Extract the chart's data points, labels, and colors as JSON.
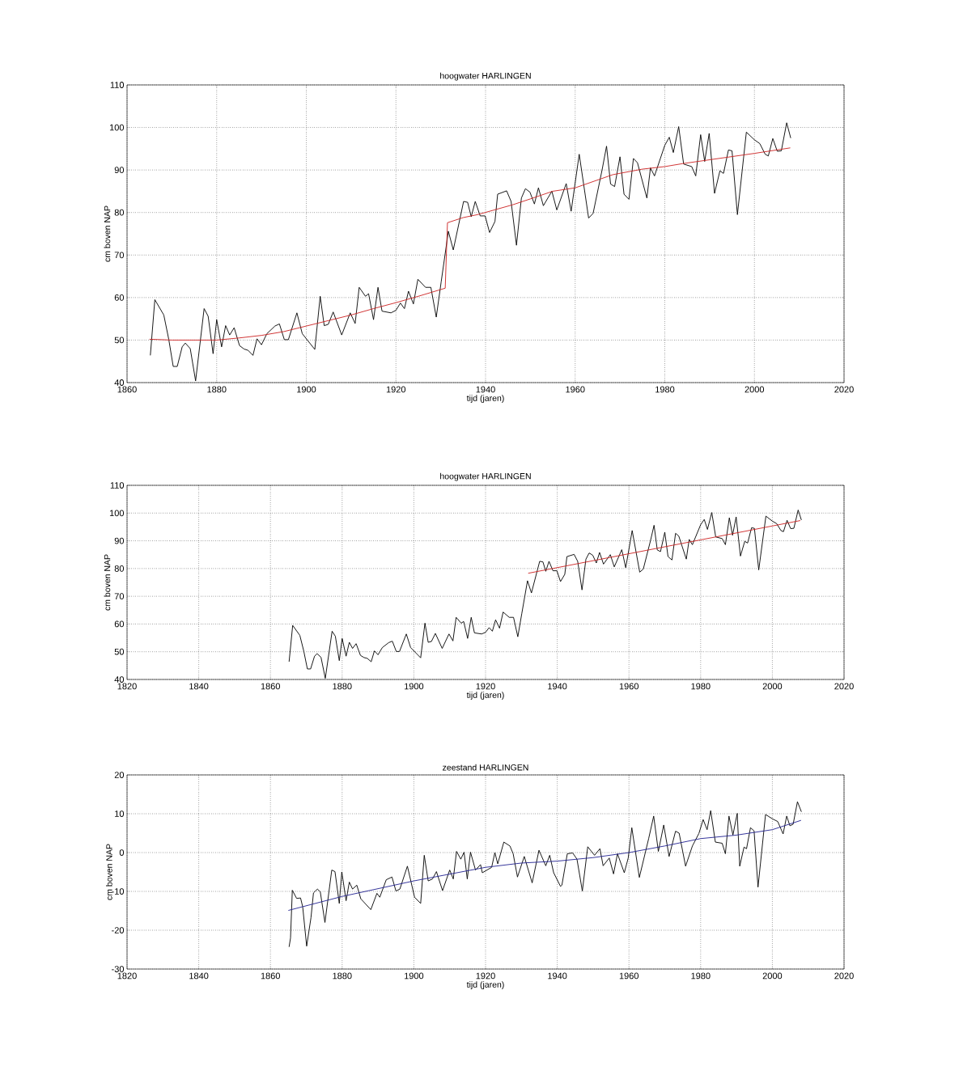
{
  "chart_data": [
    {
      "type": "line",
      "title": "hoogwater HARLINGEN",
      "xlabel": "tijd (jaren)",
      "ylabel": "cm boven NAP",
      "xlim": [
        1860,
        2020
      ],
      "ylim": [
        40,
        110
      ],
      "xticks": [
        1860,
        1880,
        1900,
        1920,
        1940,
        1960,
        1980,
        2000,
        2020
      ],
      "yticks": [
        40,
        50,
        60,
        70,
        80,
        90,
        100,
        110
      ],
      "grid": true,
      "series": [
        {
          "color": "#000000",
          "x": [
            1865.2,
            1866.2,
            1868.2,
            1869.3,
            1870.3,
            1871.2,
            1872.3,
            1873,
            1874.1,
            1875.3,
            1877.2,
            1878.1,
            1879.2,
            1880,
            1881.1,
            1882,
            1882.9,
            1883.9,
            1885.1,
            1886.1,
            1887,
            1888.1,
            1889,
            1890,
            1891.2,
            1893,
            1894,
            1895.1,
            1896,
            1897.9,
            1899.1,
            1901.9,
            1903.1,
            1904,
            1904.9,
            1906,
            1907.9,
            1909.8,
            1910.9,
            1911.8,
            1913.2,
            1913.9,
            1915,
            1916,
            1916.9,
            1918.9,
            1920,
            1921,
            1921.9,
            1922.8,
            1923.9,
            1924.9,
            1926.6,
            1927.8,
            1929,
            1930.1,
            1931.7,
            1932.8,
            1935.1,
            1936,
            1936.8,
            1937.7,
            1938.8,
            1939.9,
            1940.9,
            1942.1,
            1942.7,
            1944.7,
            1945.7,
            1946.9,
            1948,
            1948.9,
            1949.9,
            1950.9,
            1951.8,
            1952.9,
            1954.8,
            1955.9,
            1958,
            1959.1,
            1960.9,
            1963,
            1964,
            1966,
            1967,
            1967.9,
            1968.8,
            1970,
            1970.9,
            1972,
            1973,
            1973.9,
            1976,
            1976.8,
            1977.7,
            1980,
            1981,
            1981.9,
            1983.1,
            1984.2,
            1986,
            1986.9,
            1988,
            1988.9,
            1989.9,
            1991.1,
            1992.3,
            1993.1,
            1994.2,
            1995,
            1996.2,
            1998.2,
            2000,
            2001.2,
            2002.4,
            2003.1,
            2004.1,
            2005.1,
            2006,
            2007.2,
            2008.1
          ],
          "values": [
            46.4,
            59.5,
            55.9,
            50.2,
            43.8,
            43.8,
            48.4,
            49.3,
            48,
            40.4,
            57.4,
            55.6,
            46.8,
            54.8,
            48.4,
            53.4,
            51.2,
            52.9,
            48.7,
            47.9,
            47.6,
            46.4,
            50.3,
            48.9,
            51.5,
            53.3,
            53.8,
            50.1,
            50.1,
            56.4,
            51.5,
            47.8,
            60.3,
            53.4,
            53.7,
            56.6,
            51.2,
            56.4,
            53.9,
            62.4,
            60.3,
            60.9,
            54.8,
            62.4,
            56.8,
            56.4,
            57,
            58.7,
            57.4,
            61.5,
            58.5,
            64.3,
            62.4,
            62.4,
            55.4,
            63.7,
            75.6,
            71.2,
            82.6,
            82.4,
            79,
            82.6,
            79.2,
            79.2,
            75.3,
            77.9,
            84.3,
            85.1,
            82.6,
            72.3,
            83.4,
            85.6,
            84.8,
            82,
            85.8,
            81.6,
            85,
            80.6,
            86.8,
            80.3,
            93.7,
            78.7,
            79.8,
            90,
            95.6,
            86.7,
            86.1,
            93.1,
            84.3,
            83.1,
            92.7,
            91.7,
            83.4,
            90.5,
            88.6,
            95.8,
            97.7,
            94.1,
            100.2,
            91.4,
            90.8,
            88.6,
            98.3,
            92,
            98.6,
            84.5,
            89.8,
            89.2,
            94.7,
            94.5,
            79.5,
            98.9,
            97.1,
            96.2,
            93.7,
            93.3,
            97.4,
            94.4,
            94.5,
            101.1,
            97.5
          ]
        },
        {
          "color": "#cc2020",
          "x": [
            1865,
            1870,
            1880,
            1885,
            1890,
            1895,
            1900,
            1905,
            1910,
            1915,
            1920,
            1925,
            1931,
            1931.5,
            1935,
            1938.2,
            1946,
            1950,
            1955,
            1960,
            1968.4,
            1975,
            1980,
            1984,
            2000,
            2008
          ],
          "values": [
            50.2,
            50,
            50,
            50.5,
            51.1,
            52,
            53.3,
            54.6,
            55.9,
            57.4,
            58.8,
            60.3,
            62.2,
            77.6,
            78.8,
            79.5,
            81.8,
            83.2,
            85,
            85.8,
            88.9,
            90.2,
            90.8,
            91.5,
            93.9,
            95.2
          ]
        }
      ]
    },
    {
      "type": "line",
      "title": "hoogwater HARLINGEN",
      "xlabel": "tijd (jaren)",
      "ylabel": "cm boven NAP",
      "xlim": [
        1820,
        2020
      ],
      "ylim": [
        40,
        110
      ],
      "xticks": [
        1820,
        1840,
        1860,
        1880,
        1900,
        1920,
        1940,
        1960,
        1980,
        2000,
        2020
      ],
      "yticks": [
        40,
        50,
        60,
        70,
        80,
        90,
        100,
        110
      ],
      "grid": true,
      "series": [
        {
          "color": "#000000",
          "x": [
            1865.2,
            1866.2,
            1868.2,
            1869.3,
            1870.3,
            1871.2,
            1872.3,
            1873,
            1874.1,
            1875.3,
            1877.2,
            1878.1,
            1879.2,
            1880,
            1881.1,
            1882,
            1882.9,
            1883.9,
            1885.1,
            1886.1,
            1887,
            1888.1,
            1889,
            1890,
            1891.2,
            1893,
            1894,
            1895.1,
            1896,
            1897.9,
            1899.1,
            1901.9,
            1903.1,
            1904,
            1904.9,
            1906,
            1907.9,
            1909.8,
            1910.9,
            1911.8,
            1913.2,
            1913.9,
            1915,
            1916,
            1916.9,
            1918.9,
            1920,
            1921,
            1921.9,
            1922.8,
            1923.9,
            1924.9,
            1926.6,
            1927.8,
            1929,
            1930.1,
            1931.7,
            1932.8,
            1935.1,
            1936,
            1936.8,
            1937.7,
            1938.8,
            1939.9,
            1940.9,
            1942.1,
            1942.7,
            1944.7,
            1945.7,
            1946.9,
            1948,
            1948.9,
            1949.9,
            1950.9,
            1951.8,
            1952.9,
            1954.8,
            1955.9,
            1958,
            1959.1,
            1960.9,
            1963,
            1964,
            1966,
            1967,
            1967.9,
            1968.8,
            1970,
            1970.9,
            1972,
            1973,
            1973.9,
            1976,
            1976.8,
            1977.7,
            1980,
            1981,
            1981.9,
            1983.1,
            1984.2,
            1986,
            1986.9,
            1988,
            1988.9,
            1989.9,
            1991.1,
            1992.3,
            1993.1,
            1994.2,
            1995,
            1996.2,
            1998.2,
            2000,
            2001.2,
            2002.4,
            2003.1,
            2004.1,
            2005.1,
            2006,
            2007.2,
            2008.1
          ],
          "values": [
            46.4,
            59.5,
            55.9,
            50.2,
            43.8,
            43.8,
            48.4,
            49.3,
            48,
            40.4,
            57.4,
            55.6,
            46.8,
            54.8,
            48.4,
            53.4,
            51.2,
            52.9,
            48.7,
            47.9,
            47.6,
            46.4,
            50.3,
            48.9,
            51.5,
            53.3,
            53.8,
            50.1,
            50.1,
            56.4,
            51.5,
            47.8,
            60.3,
            53.4,
            53.7,
            56.6,
            51.2,
            56.4,
            53.9,
            62.4,
            60.3,
            60.9,
            54.8,
            62.4,
            56.8,
            56.4,
            57,
            58.7,
            57.4,
            61.5,
            58.5,
            64.3,
            62.4,
            62.4,
            55.4,
            63.7,
            75.6,
            71.2,
            82.6,
            82.4,
            79,
            82.6,
            79.2,
            79.2,
            75.3,
            77.9,
            84.3,
            85.1,
            82.6,
            72.3,
            83.4,
            85.6,
            84.8,
            82,
            85.8,
            81.6,
            85,
            80.6,
            86.8,
            80.3,
            93.7,
            78.7,
            79.8,
            90,
            95.6,
            86.7,
            86.1,
            93.1,
            84.3,
            83.1,
            92.7,
            91.7,
            83.4,
            90.5,
            88.6,
            95.8,
            97.7,
            94.1,
            100.2,
            91.4,
            90.8,
            88.6,
            98.3,
            92,
            98.6,
            84.5,
            89.8,
            89.2,
            94.7,
            94.5,
            79.5,
            98.9,
            97.1,
            96.2,
            93.7,
            93.3,
            97.4,
            94.4,
            94.5,
            101.1,
            97.5
          ]
        },
        {
          "color": "#cc2020",
          "x": [
            1931.9,
            2007.8
          ],
          "values": [
            78.3,
            97.3
          ]
        }
      ]
    },
    {
      "type": "line",
      "title": "zeestand HARLINGEN",
      "xlabel": "tijd (jaren)",
      "ylabel": "cm boven NAP",
      "xlim": [
        1820,
        2020
      ],
      "ylim": [
        -30,
        20
      ],
      "xticks": [
        1820,
        1840,
        1860,
        1880,
        1900,
        1920,
        1940,
        1960,
        1980,
        2000,
        2020
      ],
      "yticks": [
        -30,
        -20,
        -10,
        0,
        10,
        20
      ],
      "grid": true,
      "series": [
        {
          "color": "#000000",
          "x": [
            1865.2,
            1865.6,
            1866.1,
            1867.3,
            1868.4,
            1869,
            1870.1,
            1871.3,
            1872,
            1873.1,
            1873.9,
            1875.2,
            1877.1,
            1878,
            1879.2,
            1879.9,
            1881.1,
            1882,
            1882.9,
            1884.1,
            1885.2,
            1888,
            1889.7,
            1890.5,
            1892.3,
            1893.9,
            1895,
            1896.1,
            1898.2,
            1900.2,
            1901.9,
            1902.9,
            1904,
            1905.2,
            1906.3,
            1908,
            1910,
            1911,
            1911.9,
            1913.1,
            1914,
            1914.9,
            1915.8,
            1917.2,
            1918.6,
            1919.1,
            1921.7,
            1922.6,
            1923.4,
            1925.1,
            1926.8,
            1927.7,
            1928.9,
            1930.8,
            1933,
            1934.9,
            1936.8,
            1937.9,
            1939,
            1940.9,
            1941.3,
            1942.8,
            1944.3,
            1945.5,
            1947,
            1948.5,
            1950.4,
            1951.9,
            1952.8,
            1954.5,
            1955.7,
            1956.8,
            1958.7,
            1959.8,
            1960.8,
            1962.9,
            1965.5,
            1966.9,
            1968.2,
            1969.7,
            1971.2,
            1973,
            1974,
            1975.8,
            1977.7,
            1979.5,
            1980.7,
            1981.8,
            1982.8,
            1984.1,
            1986,
            1986.9,
            1987.9,
            1989,
            1990.2,
            1990.9,
            1992.1,
            1992.8,
            1993.9,
            1994.9,
            1996,
            1998.1,
            2000,
            2001.5,
            2003,
            2004,
            2004.9,
            2005.8,
            2007,
            2008.1
          ],
          "values": [
            -24.3,
            -22,
            -9.7,
            -11.8,
            -11.7,
            -14,
            -24.1,
            -16.8,
            -10.4,
            -9.4,
            -10.1,
            -18,
            -4.5,
            -4.9,
            -13.1,
            -5,
            -12.4,
            -7.6,
            -9.4,
            -8.4,
            -11.9,
            -14.7,
            -10.5,
            -11.5,
            -7,
            -6.3,
            -9.9,
            -9.4,
            -3.5,
            -11.5,
            -13.1,
            -0.7,
            -7.3,
            -6.8,
            -4.9,
            -9.8,
            -4.5,
            -6.8,
            0.3,
            -1.7,
            0.1,
            -6.8,
            0.1,
            -4.5,
            -3.1,
            -5.2,
            -3.8,
            0,
            -2.9,
            2.7,
            1.7,
            -0.3,
            -6.3,
            -1,
            -7.8,
            0.6,
            -3.4,
            -0.7,
            -5.2,
            -8.7,
            -8.4,
            -0.3,
            -0.1,
            -1.7,
            -9.9,
            1.5,
            -0.7,
            1,
            -3.4,
            -1.4,
            -5.5,
            -0.3,
            -5.2,
            -1.4,
            6.4,
            -6.4,
            3.6,
            9.4,
            0.3,
            7.1,
            -1,
            5.5,
            5,
            -3.5,
            1.7,
            4.9,
            8.5,
            5.9,
            10.8,
            2.7,
            2.4,
            -0.3,
            9.4,
            4.5,
            10.1,
            -3.5,
            1.4,
            1,
            6.4,
            5.6,
            -8.9,
            9.8,
            8.7,
            8,
            4.8,
            9.4,
            6.9,
            7.3,
            13.1,
            10.5
          ]
        },
        {
          "color": "#202090",
          "x": [
            1865,
            1880,
            1900,
            1920,
            1930,
            1940,
            1950,
            1960,
            1970,
            1980,
            1990,
            2000,
            2008
          ],
          "values": [
            -14.9,
            -11.3,
            -7.3,
            -3.8,
            -2.7,
            -2.2,
            -1.3,
            0,
            1.7,
            3.6,
            4.5,
            5.9,
            8.3
          ]
        }
      ]
    }
  ]
}
